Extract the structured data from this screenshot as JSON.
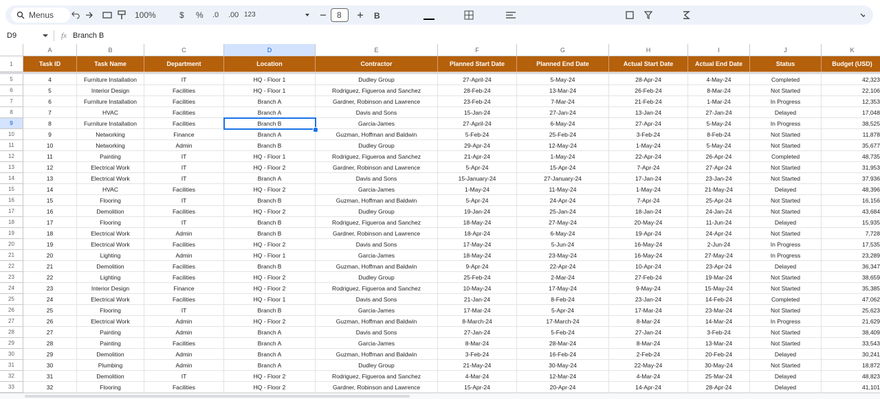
{
  "toolbar": {
    "search": "Menus",
    "zoom": "100%",
    "currency": "$",
    "percent": "%",
    "decrease_decimal": ".0",
    "increase_decimal": ".00",
    "number_format": "123",
    "font_size": "8"
  },
  "formula_bar": {
    "cell": "D9",
    "fx": "fx",
    "content": "Branch B"
  },
  "table": {
    "column_letters": [
      "A",
      "B",
      "C",
      "D",
      "E",
      "F",
      "G",
      "H",
      "I",
      "J",
      "K"
    ],
    "row_numbers": [
      1,
      5,
      6,
      7,
      8,
      9,
      10,
      11,
      12,
      13,
      14,
      15,
      16,
      17,
      18,
      19,
      20,
      21,
      22,
      23,
      24,
      25,
      26,
      27,
      28,
      29,
      30,
      31,
      32,
      33
    ],
    "header": [
      "Task ID",
      "Task Name",
      "Department",
      "Location",
      "Contractor",
      "Planned Start Date",
      "Planned End Date",
      "Actual Start Date",
      "Actual End Date",
      "Status",
      "Budget (USD)"
    ],
    "rows": [
      [
        4,
        "Furniture Installation",
        "IT",
        "HQ - Floor 1",
        "Dudley Group",
        "27-April-24",
        "5-May-24",
        "28-Apr-24",
        "4-May-24",
        "Completed",
        "42,323"
      ],
      [
        5,
        "Interior Design",
        "Facilities",
        "HQ - Floor 1",
        "Rodriguez, Figueroa and Sanchez",
        "28-Feb-24",
        "13-Mar-24",
        "26-Feb-24",
        "8-Mar-24",
        "Not Started",
        "22,106"
      ],
      [
        6,
        "Furniture Installation",
        "Facilities",
        "Branch A",
        "Gardner, Robinson and Lawrence",
        "23-Feb-24",
        "7-Mar-24",
        "21-Feb-24",
        "1-Mar-24",
        "In Progress",
        "12,353"
      ],
      [
        7,
        "HVAC",
        "Facilities",
        "Branch A",
        "Davis and Sons",
        "15-Jan-24",
        "27-Jan-24",
        "13-Jan-24",
        "27-Jan-24",
        "Delayed",
        "17,048"
      ],
      [
        8,
        "Furniture Installation",
        "Facilities",
        "Branch B",
        "Garcia-James",
        "27-April-24",
        "6-May-24",
        "27-Apr-24",
        "5-May-24",
        "In Progress",
        "38,525"
      ],
      [
        9,
        "Networking",
        "Finance",
        "Branch A",
        "Guzman, Hoffman and Baldwin",
        "5-Feb-24",
        "25-Feb-24",
        "3-Feb-24",
        "8-Feb-24",
        "Not Started",
        "11,878"
      ],
      [
        10,
        "Networking",
        "Admin",
        "Branch B",
        "Dudley Group",
        "29-Apr-24",
        "12-May-24",
        "1-May-24",
        "5-May-24",
        "Not Started",
        "35,677"
      ],
      [
        11,
        "Painting",
        "IT",
        "HQ - Floor 1",
        "Rodriguez, Figueroa and Sanchez",
        "21-Apr-24",
        "1-May-24",
        "22-Apr-24",
        "26-Apr-24",
        "Completed",
        "48,735"
      ],
      [
        12,
        "Electrical Work",
        "IT",
        "HQ - Floor 2",
        "Gardner, Robinson and Lawrence",
        "5-Apr-24",
        "15-Apr-24",
        "7-Apr-24",
        "27-Apr-24",
        "Not Started",
        "31,953"
      ],
      [
        13,
        "Electrical Work",
        "IT",
        "Branch A",
        "Davis and Sons",
        "15-January-24",
        "27-January-24",
        "17-Jan-24",
        "23-Jan-24",
        "Not Started",
        "37,936"
      ],
      [
        14,
        "HVAC",
        "Facilities",
        "HQ - Floor 2",
        "Garcia-James",
        "1-May-24",
        "11-May-24",
        "1-May-24",
        "21-May-24",
        "Delayed",
        "48,396"
      ],
      [
        15,
        "Flooring",
        "IT",
        "Branch B",
        "Guzman, Hoffman and Baldwin",
        "5-Apr-24",
        "24-Apr-24",
        "7-Apr-24",
        "25-Apr-24",
        "Not Started",
        "16,156"
      ],
      [
        16,
        "Demolition",
        "Facilities",
        "HQ - Floor 2",
        "Dudley Group",
        "19-Jan-24",
        "25-Jan-24",
        "18-Jan-24",
        "24-Jan-24",
        "Not Started",
        "43,684"
      ],
      [
        17,
        "Flooring",
        "IT",
        "Branch B",
        "Rodriguez, Figueroa and Sanchez",
        "18-May-24",
        "27-May-24",
        "20-May-24",
        "11-Jun-24",
        "Delayed",
        "15,935"
      ],
      [
        18,
        "Electrical Work",
        "Admin",
        "Branch B",
        "Gardner, Robinson and Lawrence",
        "18-Apr-24",
        "6-May-24",
        "19-Apr-24",
        "24-Apr-24",
        "Not Started",
        "7,728"
      ],
      [
        19,
        "Electrical Work",
        "Facilities",
        "HQ - Floor 2",
        "Davis and Sons",
        "17-May-24",
        "5-Jun-24",
        "16-May-24",
        "2-Jun-24",
        "In Progress",
        "17,535"
      ],
      [
        20,
        "Lighting",
        "Admin",
        "HQ - Floor 1",
        "Garcia-James",
        "18-May-24",
        "23-May-24",
        "16-May-24",
        "27-May-24",
        "In Progress",
        "23,289"
      ],
      [
        21,
        "Demolition",
        "Facilities",
        "Branch B",
        "Guzman, Hoffman and Baldwin",
        "9-Apr-24",
        "22-Apr-24",
        "10-Apr-24",
        "23-Apr-24",
        "Delayed",
        "36,347"
      ],
      [
        22,
        "Lighting",
        "Facilities",
        "HQ - Floor 2",
        "Dudley Group",
        "25-Feb-24",
        "2-Mar-24",
        "27-Feb-24",
        "19-Mar-24",
        "Not Started",
        "38,659"
      ],
      [
        23,
        "Interior Design",
        "Finance",
        "HQ - Floor 2",
        "Rodriguez, Figueroa and Sanchez",
        "10-May-24",
        "17-May-24",
        "9-May-24",
        "15-May-24",
        "Not Started",
        "35,385"
      ],
      [
        24,
        "Electrical Work",
        "Facilities",
        "HQ - Floor 1",
        "Davis and Sons",
        "21-Jan-24",
        "8-Feb-24",
        "23-Jan-24",
        "14-Feb-24",
        "Completed",
        "47,062"
      ],
      [
        25,
        "Flooring",
        "IT",
        "Branch B",
        "Garcia-James",
        "17-Mar-24",
        "5-Apr-24",
        "17-Mar-24",
        "23-Mar-24",
        "Not Started",
        "25,623"
      ],
      [
        26,
        "Electrical Work",
        "Admin",
        "HQ - Floor 2",
        "Guzman, Hoffman and Baldwin",
        "8-March-24",
        "17-March-24",
        "8-Mar-24",
        "14-Mar-24",
        "In Progress",
        "21,629"
      ],
      [
        27,
        "Painting",
        "Admin",
        "Branch A",
        "Davis and Sons",
        "27-Jan-24",
        "5-Feb-24",
        "27-Jan-24",
        "3-Feb-24",
        "Not Started",
        "38,409"
      ],
      [
        28,
        "Painting",
        "Facilities",
        "Branch A",
        "Garcia-James",
        "8-Mar-24",
        "28-Mar-24",
        "8-Mar-24",
        "13-Mar-24",
        "Not Started",
        "33,543"
      ],
      [
        29,
        "Demolition",
        "Admin",
        "Branch A",
        "Guzman, Hoffman and Baldwin",
        "3-Feb-24",
        "16-Feb-24",
        "2-Feb-24",
        "20-Feb-24",
        "Delayed",
        "30,241"
      ],
      [
        30,
        "Plumbing",
        "Admin",
        "Branch A",
        "Dudley Group",
        "21-May-24",
        "30-May-24",
        "22-May-24",
        "30-May-24",
        "Not Started",
        "18,872"
      ],
      [
        31,
        "Demolition",
        "IT",
        "HQ - Floor 2",
        "Rodriguez, Figueroa and Sanchez",
        "4-Mar-24",
        "12-Mar-24",
        "4-Mar-24",
        "25-Mar-24",
        "Delayed",
        "48,823"
      ],
      [
        32,
        "Flooring",
        "Facilities",
        "HQ - Floor 2",
        "Gardner, Robinson and Lawrence",
        "15-Apr-24",
        "20-Apr-24",
        "14-Apr-24",
        "28-Apr-24",
        "Delayed",
        "41,101"
      ]
    ]
  }
}
